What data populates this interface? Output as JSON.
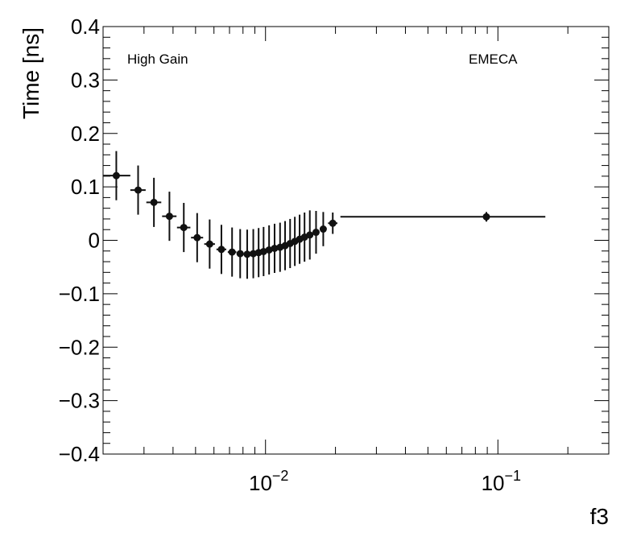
{
  "chart_data": {
    "type": "scatter",
    "xscale": "log",
    "xlim": [
      0.002,
      0.3
    ],
    "ylim": [
      -0.4,
      0.4
    ],
    "xlabel": "f3",
    "ylabel": "Time [ns]",
    "grid": false,
    "annotations": [
      "High Gain",
      "EMECA"
    ],
    "x_tick_labels": [
      {
        "value": 0.01,
        "base": "10",
        "exp": "−2"
      },
      {
        "value": 0.1,
        "base": "10",
        "exp": "−1"
      }
    ],
    "y_ticks": [
      -0.4,
      -0.3,
      -0.2,
      -0.1,
      0,
      0.1,
      0.2,
      0.3,
      0.4
    ],
    "y_tick_labels": [
      "−0.4",
      "−0.3",
      "−0.2",
      "−0.1",
      "0",
      "0.1",
      "0.2",
      "0.3",
      "0.4"
    ],
    "points": [
      {
        "x": 0.00228,
        "y": 0.121,
        "xlo": 0.002,
        "xhi": 0.00262,
        "yerr": 0.046
      },
      {
        "x": 0.00283,
        "y": 0.094,
        "xlo": 0.00262,
        "xhi": 0.00305,
        "yerr": 0.046
      },
      {
        "x": 0.00331,
        "y": 0.071,
        "xlo": 0.00307,
        "xhi": 0.00356,
        "yerr": 0.046
      },
      {
        "x": 0.00386,
        "y": 0.045,
        "xlo": 0.00359,
        "xhi": 0.00414,
        "yerr": 0.046
      },
      {
        "x": 0.00445,
        "y": 0.024,
        "xlo": 0.00416,
        "xhi": 0.00475,
        "yerr": 0.046
      },
      {
        "x": 0.00508,
        "y": 0.005,
        "xlo": 0.00478,
        "xhi": 0.00539,
        "yerr": 0.046
      },
      {
        "x": 0.00575,
        "y": -0.007,
        "xlo": 0.00545,
        "xhi": 0.00606,
        "yerr": 0.046
      },
      {
        "x": 0.00646,
        "y": -0.017,
        "xlo": 0.00615,
        "xhi": 0.00678,
        "yerr": 0.046
      },
      {
        "x": 0.00718,
        "y": -0.022,
        "xlo": 0.00688,
        "xhi": 0.00749,
        "yerr": 0.046
      },
      {
        "x": 0.00778,
        "y": -0.025,
        "xlo": 0.00751,
        "xhi": 0.00806,
        "yerr": 0.046
      },
      {
        "x": 0.00834,
        "y": -0.026,
        "xlo": 0.00808,
        "xhi": 0.00861,
        "yerr": 0.046
      },
      {
        "x": 0.00886,
        "y": -0.025,
        "xlo": 0.00861,
        "xhi": 0.00911,
        "yerr": 0.046
      },
      {
        "x": 0.00934,
        "y": -0.023,
        "xlo": 0.00911,
        "xhi": 0.00958,
        "yerr": 0.046
      },
      {
        "x": 0.00981,
        "y": -0.021,
        "xlo": 0.00958,
        "xhi": 0.01005,
        "yerr": 0.046
      },
      {
        "x": 0.01036,
        "y": -0.018,
        "xlo": 0.0101,
        "xhi": 0.01062,
        "yerr": 0.046
      },
      {
        "x": 0.01094,
        "y": -0.015,
        "xlo": 0.01066,
        "xhi": 0.01122,
        "yerr": 0.046
      },
      {
        "x": 0.01155,
        "y": -0.013,
        "xlo": 0.01128,
        "xhi": 0.01183,
        "yerr": 0.046
      },
      {
        "x": 0.01214,
        "y": -0.01,
        "xlo": 0.01186,
        "xhi": 0.01242,
        "yerr": 0.046
      },
      {
        "x": 0.01276,
        "y": -0.006,
        "xlo": 0.01248,
        "xhi": 0.01304,
        "yerr": 0.046
      },
      {
        "x": 0.01337,
        "y": -0.002,
        "xlo": 0.01308,
        "xhi": 0.01366,
        "yerr": 0.046
      },
      {
        "x": 0.01402,
        "y": 0.002,
        "xlo": 0.01372,
        "xhi": 0.01432,
        "yerr": 0.046
      },
      {
        "x": 0.01472,
        "y": 0.006,
        "xlo": 0.01441,
        "xhi": 0.01503,
        "yerr": 0.046
      },
      {
        "x": 0.01551,
        "y": 0.01,
        "xlo": 0.01517,
        "xhi": 0.01585,
        "yerr": 0.046
      },
      {
        "x": 0.0165,
        "y": 0.015,
        "xlo": 0.01609,
        "xhi": 0.01693,
        "yerr": 0.04
      },
      {
        "x": 0.01772,
        "y": 0.021,
        "xlo": 0.01721,
        "xhi": 0.01824,
        "yerr": 0.032
      },
      {
        "x": 0.01947,
        "y": 0.032,
        "xlo": 0.01858,
        "xhi": 0.02039,
        "yerr": 0.02
      },
      {
        "x": 0.0892,
        "y": 0.044,
        "xlo": 0.021,
        "xhi": 0.16,
        "yerr": 0.009
      }
    ],
    "colors": {
      "marker": "#111111",
      "axis": "#000000",
      "background": "#ffffff"
    }
  }
}
